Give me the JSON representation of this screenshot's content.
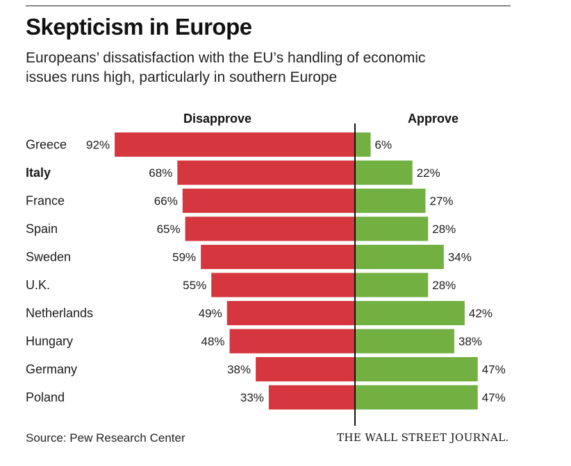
{
  "header": {
    "title": "Skepticism in Europe",
    "subtitle": "Europeans’ dissatisfaction with the EU’s handling of economic issues runs high, particularly in southern Europe"
  },
  "footer": {
    "source": "Source: Pew Research Center",
    "publisher": "THE WALL STREET JOURNAL."
  },
  "chart_data": {
    "type": "bar",
    "orientation": "horizontal-diverging",
    "title": "Skepticism in Europe",
    "unit": "%",
    "xlim": [
      0,
      100
    ],
    "categories": [
      "Greece",
      "Italy",
      "France",
      "Spain",
      "Sweden",
      "U.K.",
      "Netherlands",
      "Hungary",
      "Germany",
      "Poland"
    ],
    "highlighted_category": "Italy",
    "series": [
      {
        "name": "Disapprove",
        "side": "left",
        "color": "#d6363d",
        "values": [
          92,
          68,
          66,
          65,
          59,
          55,
          49,
          48,
          38,
          33
        ],
        "labels": [
          "92%",
          "68%",
          "66%",
          "65%",
          "59%",
          "55%",
          "49%",
          "48%",
          "38%",
          "33%"
        ]
      },
      {
        "name": "Approve",
        "side": "right",
        "color": "#72b042",
        "values": [
          6,
          22,
          27,
          28,
          34,
          28,
          42,
          38,
          47,
          47
        ],
        "labels": [
          "6%",
          "22%",
          "27%",
          "28%",
          "34%",
          "28%",
          "42%",
          "38%",
          "47%",
          "47%"
        ]
      }
    ],
    "grid": false,
    "legend": "column headers above bars"
  }
}
